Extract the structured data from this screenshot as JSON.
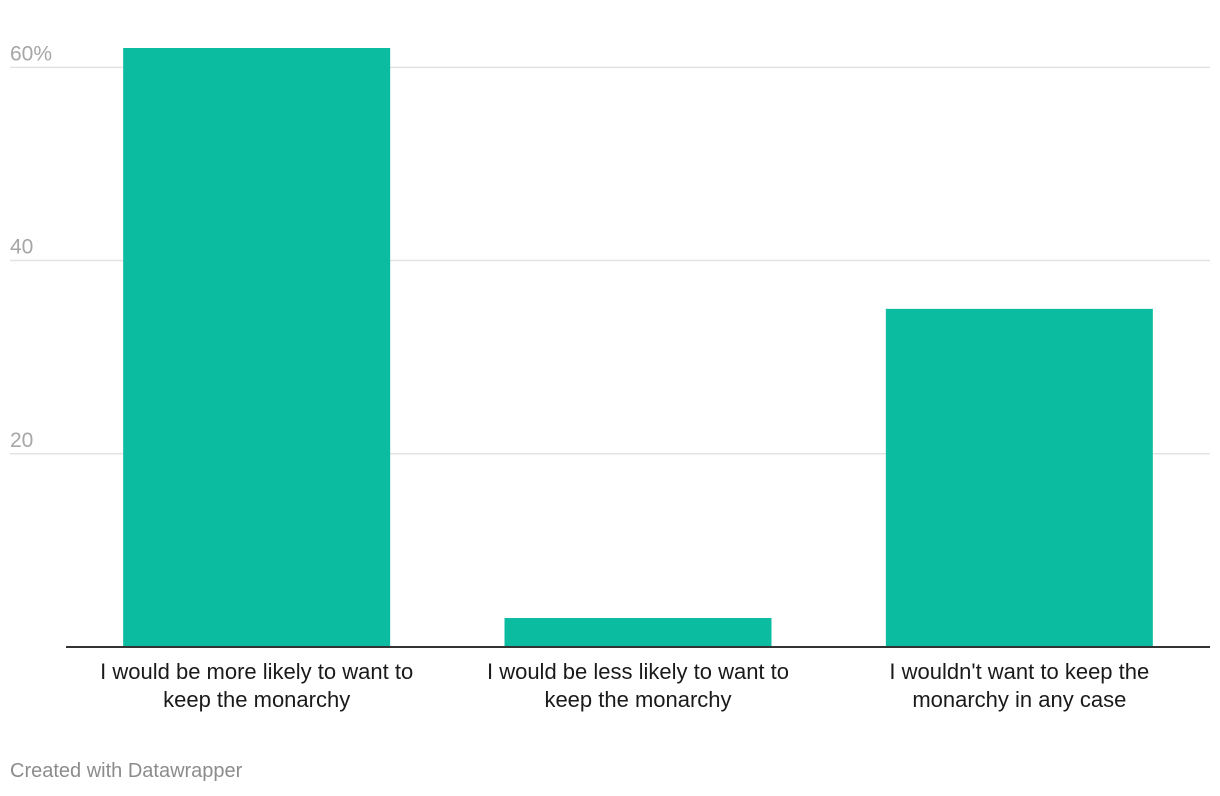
{
  "chart_data": {
    "type": "bar",
    "categories": [
      "I would be more likely to want to keep the monarchy",
      "I would be less likely to want to keep the monarchy",
      "I wouldn't want to keep the monarchy in any case"
    ],
    "category_lines": [
      [
        "I would be more likely to want to",
        "keep the monarchy"
      ],
      [
        "I would be less likely to want to",
        "keep the monarchy"
      ],
      [
        "I wouldn't want to keep the",
        "monarchy in any case"
      ]
    ],
    "values": [
      62,
      3,
      35
    ],
    "ylim": [
      0,
      62
    ],
    "yticks": [
      20,
      40,
      60
    ],
    "ytick_labels": [
      "20",
      "40",
      "60%"
    ],
    "grid": true,
    "bar_color": "#0bbca1",
    "grid_color": "#e3e3e3",
    "axis_color": "#333333"
  },
  "footer": {
    "credit": "Created with Datawrapper"
  }
}
